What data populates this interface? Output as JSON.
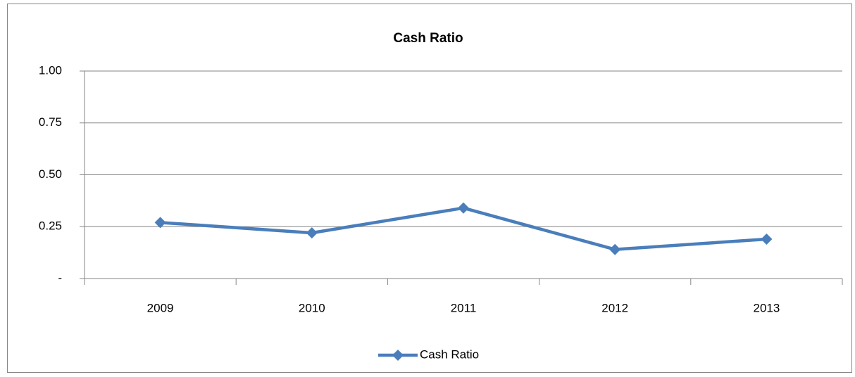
{
  "chart_data": {
    "type": "line",
    "title": "Cash Ratio",
    "categories": [
      "2009",
      "2010",
      "2011",
      "2012",
      "2013"
    ],
    "series": [
      {
        "name": "Cash Ratio",
        "color": "#4a7ebb",
        "values": [
          0.27,
          0.22,
          0.34,
          0.14,
          0.19
        ]
      }
    ],
    "ylim": [
      0,
      1
    ],
    "yticks": [
      {
        "value": 0,
        "label": "-"
      },
      0.25,
      {
        "value": 0.5,
        "label": "0.50"
      },
      {
        "value": 0.75,
        "label": "0.75"
      },
      {
        "value": 1,
        "label": "1.00"
      }
    ],
    "grid": true,
    "legend": "bottom"
  }
}
